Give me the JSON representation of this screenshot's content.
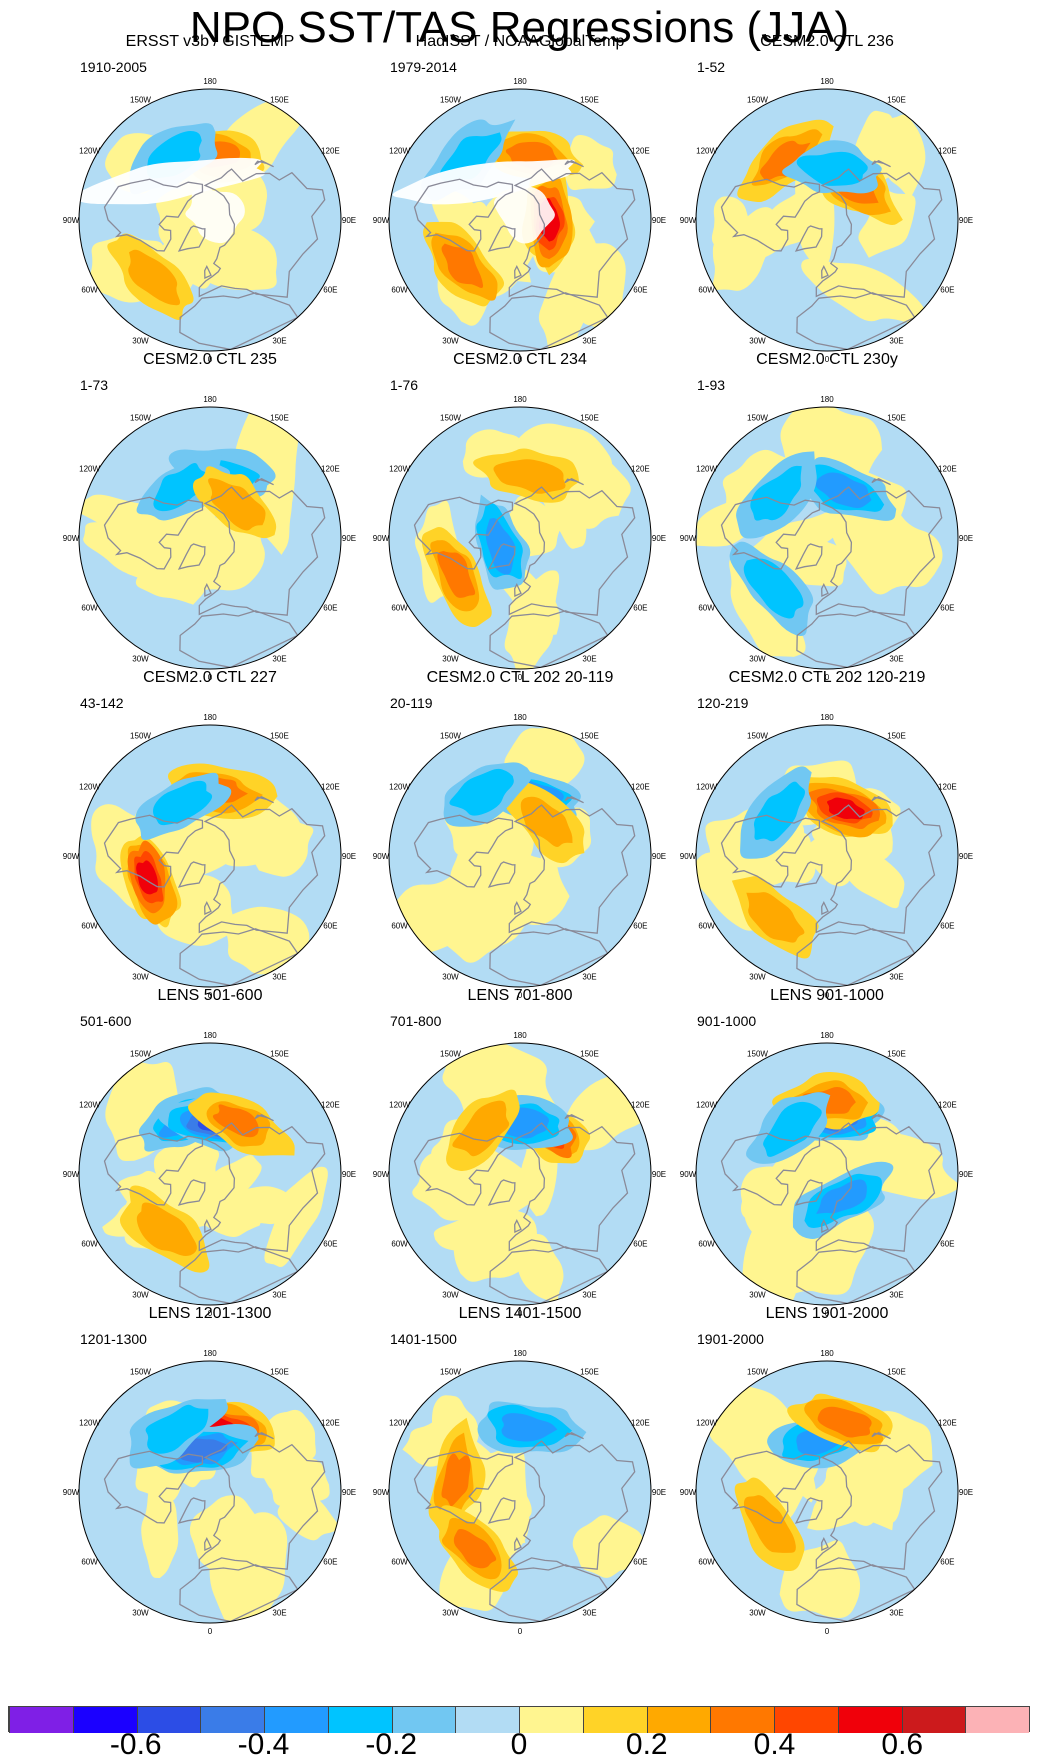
{
  "title": "NPO SST/TAS Regressions (JJA)",
  "lon_labels": [
    "180",
    "150E",
    "120E",
    "90E",
    "60E",
    "30E",
    "0",
    "30W",
    "60W",
    "90W",
    "120W",
    "150W"
  ],
  "panels": [
    {
      "title": "ERSST v3b / GISTEMP",
      "years": "1910-2005",
      "anomalies": [
        {
          "lat": 45,
          "lon": 175,
          "value": 0.3
        },
        {
          "lat": 40,
          "lon": -150,
          "value": -0.2
        },
        {
          "lat": 35,
          "lon": -45,
          "value": 0.2
        }
      ],
      "mask": true
    },
    {
      "title": "HadISST / NOAAGlobalTemp",
      "years": "1979-2014",
      "anomalies": [
        {
          "lat": 45,
          "lon": 170,
          "value": 0.3
        },
        {
          "lat": 70,
          "lon": 90,
          "value": 0.5
        },
        {
          "lat": 40,
          "lon": -50,
          "value": 0.3
        },
        {
          "lat": 35,
          "lon": -140,
          "value": -0.2
        }
      ],
      "mask": true
    },
    {
      "title": "CESM2.0 CTL 236",
      "years": "1-52",
      "anomalies": [
        {
          "lat": 40,
          "lon": -145,
          "value": 0.3
        },
        {
          "lat": 60,
          "lon": 145,
          "value": 0.3
        },
        {
          "lat": 55,
          "lon": 170,
          "value": -0.2
        }
      ],
      "mask": false
    },
    {
      "title": "CESM2.0 CTL 235",
      "years": "1-73",
      "anomalies": [
        {
          "lat": 45,
          "lon": 165,
          "value": -0.2
        },
        {
          "lat": 50,
          "lon": -150,
          "value": -0.2
        },
        {
          "lat": 60,
          "lon": 140,
          "value": 0.2
        }
      ],
      "mask": false
    },
    {
      "title": "CESM2.0 CTL 234",
      "years": "1-76",
      "anomalies": [
        {
          "lat": 45,
          "lon": 170,
          "value": 0.2
        },
        {
          "lat": 40,
          "lon": -60,
          "value": 0.3
        },
        {
          "lat": 75,
          "lon": -70,
          "value": -0.3
        }
      ],
      "mask": false
    },
    {
      "title": "CESM2.0 CTL 230y",
      "years": "1-93",
      "anomalies": [
        {
          "lat": 55,
          "lon": 160,
          "value": -0.3
        },
        {
          "lat": 45,
          "lon": -130,
          "value": -0.2
        },
        {
          "lat": 40,
          "lon": -45,
          "value": -0.2
        }
      ],
      "mask": false
    },
    {
      "title": "CESM2.0 CTL 227",
      "years": "43-142",
      "anomalies": [
        {
          "lat": 45,
          "lon": 175,
          "value": 0.3
        },
        {
          "lat": 45,
          "lon": -70,
          "value": 0.5
        },
        {
          "lat": 50,
          "lon": -150,
          "value": -0.2
        }
      ],
      "mask": false
    },
    {
      "title": "CESM2.0 CTL 202 20-119",
      "years": "20-119",
      "anomalies": [
        {
          "lat": 50,
          "lon": 170,
          "value": -0.4
        },
        {
          "lat": 60,
          "lon": 140,
          "value": 0.2
        },
        {
          "lat": 40,
          "lon": -150,
          "value": -0.2
        }
      ],
      "mask": false
    },
    {
      "title": "CESM2.0 CTL 202 120-219",
      "years": "120-219",
      "anomalies": [
        {
          "lat": 55,
          "lon": 160,
          "value": 0.5
        },
        {
          "lat": 45,
          "lon": -130,
          "value": -0.2
        },
        {
          "lat": 35,
          "lon": -40,
          "value": 0.2
        }
      ],
      "mask": false
    },
    {
      "title": "LENS 501-600",
      "years": "501-600",
      "anomalies": [
        {
          "lat": 50,
          "lon": -155,
          "value": -0.3
        },
        {
          "lat": 55,
          "lon": 175,
          "value": -0.5
        },
        {
          "lat": 50,
          "lon": 150,
          "value": 0.3
        },
        {
          "lat": 40,
          "lon": -40,
          "value": 0.2
        }
      ],
      "mask": false
    },
    {
      "title": "LENS 701-800",
      "years": "701-800",
      "anomalies": [
        {
          "lat": 55,
          "lon": 145,
          "value": 0.4
        },
        {
          "lat": 55,
          "lon": 175,
          "value": -0.3
        },
        {
          "lat": 50,
          "lon": -140,
          "value": 0.2
        }
      ],
      "mask": false
    },
    {
      "title": "LENS 901-1000",
      "years": "901-1000",
      "anomalies": [
        {
          "lat": 50,
          "lon": 175,
          "value": -0.5
        },
        {
          "lat": 40,
          "lon": 178,
          "value": 0.3
        },
        {
          "lat": 50,
          "lon": -140,
          "value": -0.2
        },
        {
          "lat": 70,
          "lon": 30,
          "value": -0.3
        }
      ],
      "mask": false
    },
    {
      "title": "LENS 1201-1300",
      "years": "1201-1300",
      "anomalies": [
        {
          "lat": 45,
          "lon": 170,
          "value": 0.5
        },
        {
          "lat": 60,
          "lon": -170,
          "value": -0.4
        },
        {
          "lat": 40,
          "lon": -150,
          "value": -0.2
        }
      ],
      "mask": false
    },
    {
      "title": "LENS 1401-1500",
      "years": "1401-1500",
      "anomalies": [
        {
          "lat": 45,
          "lon": 175,
          "value": -0.3
        },
        {
          "lat": 45,
          "lon": -100,
          "value": 0.3
        },
        {
          "lat": 40,
          "lon": -40,
          "value": 0.3
        }
      ],
      "mask": false
    },
    {
      "title": "LENS 1901-2000",
      "years": "1901-2000",
      "anomalies": [
        {
          "lat": 55,
          "lon": -170,
          "value": -0.3
        },
        {
          "lat": 40,
          "lon": 165,
          "value": 0.3
        },
        {
          "lat": 45,
          "lon": -60,
          "value": 0.2
        }
      ],
      "mask": false
    }
  ],
  "colorbar": {
    "colors": [
      "#7f1fe6",
      "#1b00ff",
      "#2c4de6",
      "#3a7ce8",
      "#229bff",
      "#00c4ff",
      "#71c7f2",
      "#b2dcf4",
      "#fff590",
      "#ffd327",
      "#ffa900",
      "#ff7800",
      "#ff4600",
      "#f0000a",
      "#cc1a1c",
      "#fcb2b6"
    ],
    "ticks": [
      {
        "value": -0.6,
        "label": "-0.6"
      },
      {
        "value": -0.4,
        "label": "-0.4"
      },
      {
        "value": -0.2,
        "label": "-0.2"
      },
      {
        "value": 0,
        "label": "0"
      },
      {
        "value": 0.2,
        "label": "0.2"
      },
      {
        "value": 0.4,
        "label": "0.4"
      },
      {
        "value": 0.6,
        "label": "0.6"
      }
    ],
    "min": -0.8,
    "max": 0.8
  }
}
